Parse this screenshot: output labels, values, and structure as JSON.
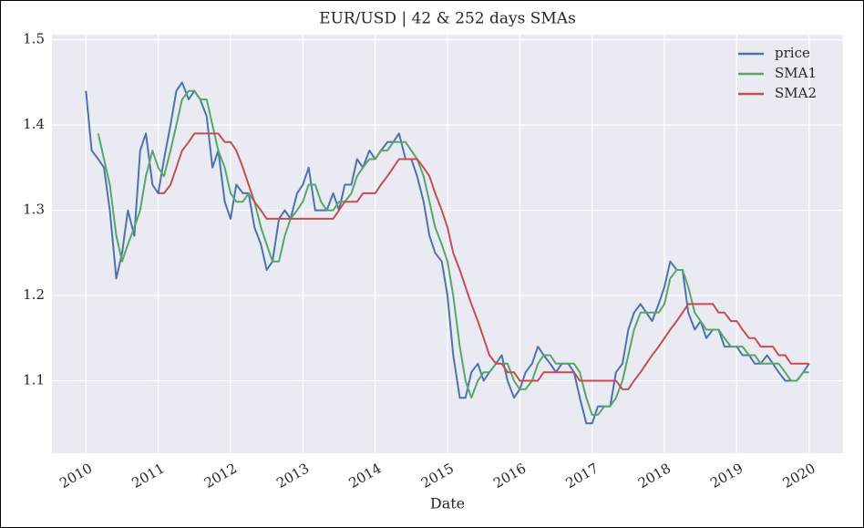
{
  "chart_data": {
    "type": "line",
    "title": "EUR/USD | 42 & 252 days SMAs",
    "xlabel": "Date",
    "x": [
      2010,
      2010.08,
      2010.17,
      2010.25,
      2010.33,
      2010.42,
      2010.5,
      2010.58,
      2010.67,
      2010.75,
      2010.83,
      2010.92,
      2011,
      2011.08,
      2011.17,
      2011.25,
      2011.33,
      2011.42,
      2011.5,
      2011.58,
      2011.67,
      2011.75,
      2011.83,
      2011.92,
      2012,
      2012.08,
      2012.17,
      2012.25,
      2012.33,
      2012.42,
      2012.5,
      2012.58,
      2012.67,
      2012.75,
      2012.83,
      2012.92,
      2013,
      2013.08,
      2013.17,
      2013.25,
      2013.33,
      2013.42,
      2013.5,
      2013.58,
      2013.67,
      2013.75,
      2013.83,
      2013.92,
      2014,
      2014.08,
      2014.17,
      2014.25,
      2014.33,
      2014.42,
      2014.5,
      2014.58,
      2014.67,
      2014.75,
      2014.83,
      2014.92,
      2015,
      2015.08,
      2015.17,
      2015.25,
      2015.33,
      2015.42,
      2015.5,
      2015.58,
      2015.67,
      2015.75,
      2015.83,
      2015.92,
      2016,
      2016.08,
      2016.17,
      2016.25,
      2016.33,
      2016.42,
      2016.5,
      2016.58,
      2016.67,
      2016.75,
      2016.83,
      2016.92,
      2017,
      2017.08,
      2017.17,
      2017.25,
      2017.33,
      2017.42,
      2017.5,
      2017.58,
      2017.67,
      2017.75,
      2017.83,
      2017.92,
      2018,
      2018.08,
      2018.17,
      2018.25,
      2018.33,
      2018.42,
      2018.5,
      2018.58,
      2018.67,
      2018.75,
      2018.83,
      2018.92,
      2019,
      2019.08,
      2019.17,
      2019.25,
      2019.33,
      2019.42,
      2019.5,
      2019.58,
      2019.67,
      2019.75,
      2019.83,
      2019.92,
      2020
    ],
    "series": [
      {
        "name": "price",
        "color": "#4c72b0",
        "values": [
          1.44,
          1.37,
          1.36,
          1.35,
          1.3,
          1.22,
          1.25,
          1.3,
          1.27,
          1.37,
          1.39,
          1.33,
          1.32,
          1.36,
          1.4,
          1.44,
          1.45,
          1.43,
          1.44,
          1.43,
          1.41,
          1.35,
          1.37,
          1.31,
          1.29,
          1.33,
          1.32,
          1.32,
          1.28,
          1.26,
          1.23,
          1.24,
          1.29,
          1.3,
          1.29,
          1.32,
          1.33,
          1.35,
          1.3,
          1.3,
          1.3,
          1.32,
          1.3,
          1.33,
          1.33,
          1.36,
          1.35,
          1.37,
          1.36,
          1.37,
          1.38,
          1.38,
          1.39,
          1.36,
          1.36,
          1.34,
          1.31,
          1.27,
          1.25,
          1.24,
          1.2,
          1.13,
          1.08,
          1.08,
          1.11,
          1.12,
          1.1,
          1.11,
          1.12,
          1.13,
          1.1,
          1.08,
          1.09,
          1.11,
          1.12,
          1.14,
          1.13,
          1.12,
          1.11,
          1.12,
          1.12,
          1.11,
          1.08,
          1.05,
          1.05,
          1.07,
          1.07,
          1.07,
          1.11,
          1.12,
          1.16,
          1.18,
          1.19,
          1.18,
          1.17,
          1.19,
          1.21,
          1.24,
          1.23,
          1.23,
          1.18,
          1.16,
          1.17,
          1.15,
          1.16,
          1.16,
          1.14,
          1.14,
          1.14,
          1.13,
          1.13,
          1.12,
          1.12,
          1.13,
          1.12,
          1.11,
          1.1,
          1.1,
          1.1,
          1.11,
          1.12
        ]
      },
      {
        "name": "SMA1",
        "color": "#55a868",
        "values": [
          null,
          null,
          1.39,
          1.36,
          1.33,
          1.27,
          1.24,
          1.26,
          1.28,
          1.3,
          1.34,
          1.37,
          1.35,
          1.34,
          1.37,
          1.4,
          1.43,
          1.44,
          1.44,
          1.43,
          1.43,
          1.4,
          1.37,
          1.35,
          1.32,
          1.31,
          1.31,
          1.32,
          1.31,
          1.28,
          1.26,
          1.24,
          1.24,
          1.27,
          1.29,
          1.3,
          1.31,
          1.33,
          1.33,
          1.31,
          1.3,
          1.3,
          1.31,
          1.31,
          1.32,
          1.34,
          1.35,
          1.36,
          1.36,
          1.37,
          1.37,
          1.38,
          1.38,
          1.38,
          1.37,
          1.36,
          1.34,
          1.31,
          1.28,
          1.26,
          1.24,
          1.2,
          1.14,
          1.1,
          1.08,
          1.1,
          1.11,
          1.11,
          1.12,
          1.12,
          1.12,
          1.1,
          1.09,
          1.09,
          1.1,
          1.12,
          1.13,
          1.13,
          1.12,
          1.12,
          1.12,
          1.12,
          1.11,
          1.08,
          1.06,
          1.06,
          1.07,
          1.07,
          1.08,
          1.1,
          1.13,
          1.16,
          1.18,
          1.18,
          1.18,
          1.18,
          1.19,
          1.22,
          1.23,
          1.23,
          1.21,
          1.18,
          1.17,
          1.16,
          1.16,
          1.16,
          1.15,
          1.14,
          1.14,
          1.14,
          1.13,
          1.13,
          1.12,
          1.12,
          1.12,
          1.12,
          1.11,
          1.1,
          1.1,
          1.11,
          1.11
        ]
      },
      {
        "name": "SMA2",
        "color": "#c44e52",
        "values": [
          null,
          null,
          null,
          null,
          null,
          null,
          null,
          null,
          null,
          null,
          null,
          null,
          1.32,
          1.32,
          1.33,
          1.35,
          1.37,
          1.38,
          1.39,
          1.39,
          1.39,
          1.39,
          1.39,
          1.38,
          1.38,
          1.37,
          1.35,
          1.33,
          1.31,
          1.3,
          1.29,
          1.29,
          1.29,
          1.29,
          1.29,
          1.29,
          1.29,
          1.29,
          1.29,
          1.29,
          1.29,
          1.29,
          1.3,
          1.31,
          1.31,
          1.31,
          1.32,
          1.32,
          1.32,
          1.33,
          1.34,
          1.35,
          1.36,
          1.36,
          1.36,
          1.36,
          1.35,
          1.34,
          1.32,
          1.3,
          1.28,
          1.25,
          1.23,
          1.21,
          1.19,
          1.17,
          1.15,
          1.13,
          1.12,
          1.12,
          1.11,
          1.11,
          1.1,
          1.1,
          1.1,
          1.1,
          1.11,
          1.11,
          1.11,
          1.11,
          1.11,
          1.11,
          1.1,
          1.1,
          1.1,
          1.1,
          1.1,
          1.1,
          1.1,
          1.09,
          1.09,
          1.1,
          1.11,
          1.12,
          1.13,
          1.14,
          1.15,
          1.16,
          1.17,
          1.18,
          1.19,
          1.19,
          1.19,
          1.19,
          1.19,
          1.18,
          1.18,
          1.17,
          1.17,
          1.16,
          1.15,
          1.15,
          1.14,
          1.14,
          1.14,
          1.13,
          1.13,
          1.12,
          1.12,
          1.12,
          1.12
        ]
      }
    ],
    "xlim": [
      2009.53,
      2020.47
    ],
    "xticks": [
      2010,
      2011,
      2012,
      2013,
      2014,
      2015,
      2016,
      2017,
      2018,
      2019,
      2020
    ],
    "ylim": [
      1.015,
      1.506
    ],
    "yticks": [
      1.1,
      1.2,
      1.3,
      1.4,
      1.5
    ],
    "grid": true,
    "legend": "upper right"
  }
}
